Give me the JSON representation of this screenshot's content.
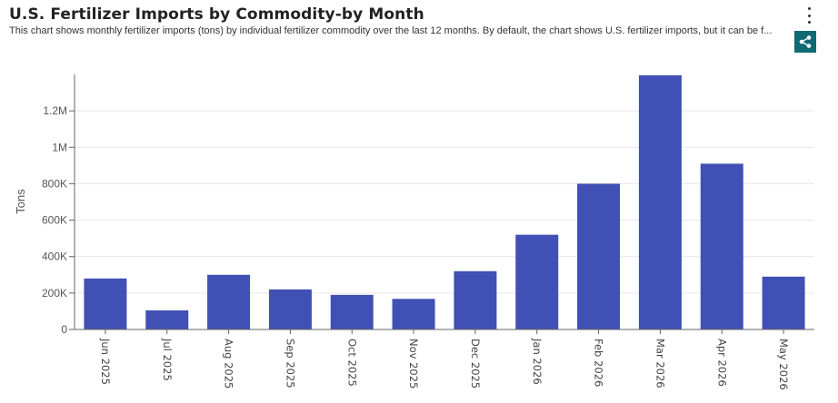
{
  "header": {
    "title": "U.S. Fertilizer Imports by Commodity-by Month",
    "subtitle": "This chart shows monthly fertilizer imports (tons) by individual fertilizer commodity over the last 12 months. By default, the chart shows U.S. fertilizer imports, but it can be f..."
  },
  "icons": {
    "menu": "kebab-menu-icon",
    "share": "share-icon"
  },
  "colors": {
    "bar": "#4050b5",
    "share_bg": "#0e6b73",
    "grid": "#e6e6e6",
    "axis": "#666666"
  },
  "chart_data": {
    "type": "bar",
    "title": "U.S. Fertilizer Imports by Commodity-by Month",
    "ylabel": "Tons",
    "xlabel": "",
    "categories": [
      "Jun 2025",
      "Jul 2025",
      "Aug 2025",
      "Sep 2025",
      "Oct 2025",
      "Nov 2025",
      "Dec 2025",
      "Jan 2026",
      "Feb 2026",
      "Mar 2026",
      "Apr 2026",
      "May 2026"
    ],
    "values": [
      280000,
      105000,
      300000,
      220000,
      190000,
      168000,
      320000,
      520000,
      800000,
      1395000,
      910000,
      290000
    ],
    "ylim": [
      0,
      1400000
    ],
    "yticks": [
      0,
      200000,
      400000,
      600000,
      800000,
      1000000,
      1200000
    ],
    "ytick_labels": [
      "0",
      "200K",
      "400K",
      "600K",
      "800K",
      "1M",
      "1.2M"
    ],
    "grid": true,
    "legend": "none"
  }
}
